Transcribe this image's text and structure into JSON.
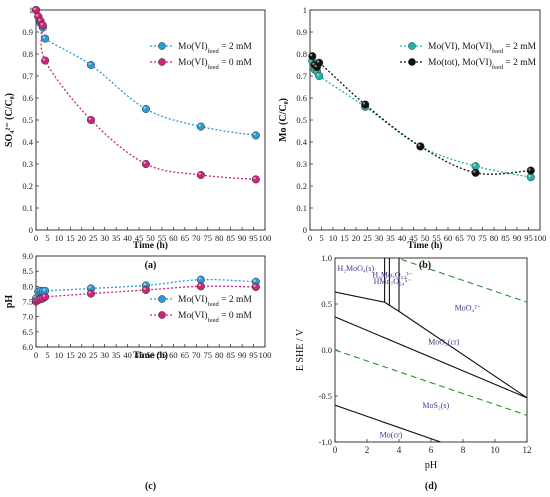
{
  "chart_data": [
    {
      "panel": "(a)",
      "type": "scatter",
      "xlabel": "Time (h)",
      "ylabel": "SO₄²⁻ (C/C₀)",
      "xlim": [
        0,
        100
      ],
      "ylim": [
        0,
        1
      ],
      "xticks": [
        "0",
        "5",
        "10",
        "15",
        "20",
        "25",
        "30",
        "35",
        "40",
        "45",
        "50",
        "55",
        "60",
        "65",
        "70",
        "75",
        "80",
        "85",
        "90",
        "95",
        "100"
      ],
      "yticks": [
        "0",
        "0.1",
        "0.2",
        "0.3",
        "0.4",
        "0.5",
        "0.6",
        "0.7",
        "0.8",
        "0.9",
        "1"
      ],
      "legend_position": "top-right",
      "series": [
        {
          "name": "Mo(VI)feed = 2 mM",
          "color": "#2a9bd4",
          "x": [
            0,
            1,
            2,
            3,
            4,
            24,
            48,
            72,
            96
          ],
          "y": [
            1.0,
            0.97,
            0.94,
            0.92,
            0.87,
            0.75,
            0.55,
            0.47,
            0.43
          ]
        },
        {
          "name": "Mo(VI)feed = 0 mM",
          "color": "#c8267a",
          "x": [
            0,
            1,
            2,
            3,
            4,
            24,
            48,
            72,
            96
          ],
          "y": [
            1.0,
            0.97,
            0.95,
            0.93,
            0.77,
            0.5,
            0.3,
            0.25,
            0.23
          ]
        }
      ]
    },
    {
      "panel": "(b)",
      "type": "scatter",
      "xlabel": "Time (h)",
      "ylabel": "Mo (C/C₀)",
      "xlim": [
        0,
        100
      ],
      "ylim": [
        0,
        1
      ],
      "xticks": [
        "0",
        "5",
        "10",
        "15",
        "20",
        "25",
        "30",
        "35",
        "40",
        "45",
        "50",
        "55",
        "60",
        "65",
        "70",
        "75",
        "80",
        "85",
        "90",
        "95",
        "100"
      ],
      "yticks": [
        "0",
        "0.1",
        "0.2",
        "0.3",
        "0.4",
        "0.5",
        "0.6",
        "0.7",
        "0.8",
        "0.9",
        "1"
      ],
      "legend_position": "top-right",
      "series": [
        {
          "name": "Mo(VI), Mo(VI)feed = 2 mM",
          "color": "#22b3a8",
          "x": [
            1,
            2,
            3,
            4,
            24,
            48,
            72,
            96
          ],
          "y": [
            0.77,
            0.73,
            0.72,
            0.7,
            0.56,
            0.38,
            0.29,
            0.24
          ]
        },
        {
          "name": "Mo(tot), Mo(VI)feed = 2 mM",
          "color": "#111111",
          "x": [
            1,
            2,
            3,
            4,
            24,
            48,
            72,
            96
          ],
          "y": [
            0.79,
            0.75,
            0.74,
            0.76,
            0.57,
            0.38,
            0.26,
            0.27
          ]
        }
      ]
    },
    {
      "panel": "(c)",
      "type": "scatter",
      "xlabel": "Time (h)",
      "ylabel": "pH",
      "xlim": [
        0,
        100
      ],
      "ylim": [
        6,
        9
      ],
      "xticks": [
        "0",
        "5",
        "10",
        "15",
        "20",
        "25",
        "30",
        "35",
        "40",
        "45",
        "50",
        "55",
        "60",
        "65",
        "70",
        "75",
        "80",
        "85",
        "90",
        "95",
        "100"
      ],
      "yticks": [
        "6.0",
        "6.5",
        "7.0",
        "7.5",
        "8.0",
        "8.5",
        "9.0"
      ],
      "legend_position": "bottom-right",
      "series": [
        {
          "name": "Mo(VI)feed = 2 mM",
          "color": "#2a9bd4",
          "x": [
            0,
            1,
            2,
            3,
            4,
            24,
            48,
            72,
            96
          ],
          "y": [
            7.6,
            7.83,
            7.85,
            7.84,
            7.85,
            7.93,
            8.03,
            8.22,
            8.15
          ]
        },
        {
          "name": "Mo(VI)feed = 0 mM",
          "color": "#c8267a",
          "x": [
            0,
            1,
            2,
            3,
            4,
            24,
            48,
            72,
            96
          ],
          "y": [
            7.5,
            7.55,
            7.58,
            7.6,
            7.65,
            7.76,
            7.88,
            8.0,
            7.98
          ]
        }
      ]
    },
    {
      "panel": "(d)",
      "type": "diagram",
      "xlabel": "pH",
      "ylabel": "E SHE / V",
      "xlim": [
        0,
        12
      ],
      "ylim": [
        -1.0,
        1.0
      ],
      "xticks": [
        "0",
        "2",
        "4",
        "6",
        "8",
        "10",
        "12"
      ],
      "yticks": [
        "-1.0",
        "-0.5",
        "0.0",
        "0.5",
        "1.0"
      ],
      "species": [
        {
          "label": "H₂MoO₄(s)",
          "pH": 1.3,
          "E": 0.86
        },
        {
          "label": "H₃Mo₇O₂₄³⁻",
          "pH": 3.6,
          "E": 0.79
        },
        {
          "label": "HMo₇O₂₄⁵⁻",
          "pH": 3.6,
          "E": 0.72
        },
        {
          "label": "MoO₄²⁻",
          "pH": 8.3,
          "E": 0.43
        },
        {
          "label": "MoO₂(cr)",
          "pH": 6.8,
          "E": 0.06
        },
        {
          "label": "MoS₂(s)",
          "pH": 6.3,
          "E": -0.63
        },
        {
          "label": "Mo(cr)",
          "pH": 3.5,
          "E": -0.95
        }
      ],
      "boundaries": [
        [
          [
            0,
            0.63
          ],
          [
            3.1,
            0.52
          ],
          [
            4,
            0.42
          ],
          [
            12,
            -0.52
          ]
        ],
        [
          [
            0,
            0.36
          ],
          [
            12,
            -0.52
          ]
        ],
        [
          [
            0,
            -0.6
          ],
          [
            6.6,
            -1.0
          ]
        ],
        [
          [
            3.1,
            1.0
          ],
          [
            3.1,
            0.52
          ]
        ],
        [
          [
            3.4,
            1.0
          ],
          [
            3.4,
            0.48
          ]
        ],
        [
          [
            4,
            1.0
          ],
          [
            4,
            0.42
          ]
        ]
      ],
      "water_lines": [
        {
          "color": "#2f8f2f",
          "points": [
            [
              0,
              1.23
            ],
            [
              12,
              0.52
            ]
          ]
        },
        {
          "color": "#2f8f2f",
          "points": [
            [
              0,
              0.0
            ],
            [
              12,
              -0.71
            ]
          ]
        }
      ]
    }
  ]
}
